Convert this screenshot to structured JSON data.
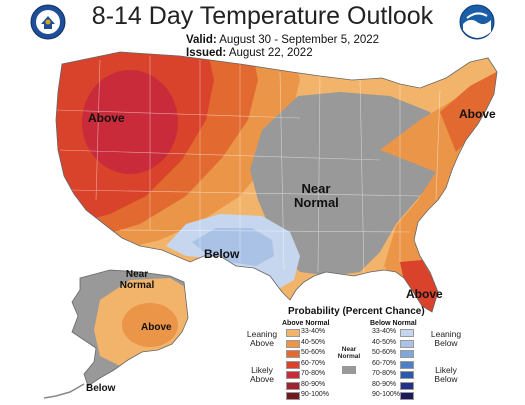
{
  "header": {
    "title": "8-14 Day Temperature Outlook",
    "valid_label": "Valid:",
    "valid_value": "August 30 - September 5, 2022",
    "issued_label": "Issued:",
    "issued_value": "August 22, 2022"
  },
  "logos": {
    "left": "doc-seal-icon",
    "right": "noaa-logo-icon"
  },
  "map_labels": {
    "west": "Above",
    "northeast": "Above",
    "central_line1": "Near",
    "central_line2": "Normal",
    "south": "Below",
    "florida": "Above",
    "alaska_near_line1": "Near",
    "alaska_near_line2": "Normal",
    "alaska_above": "Above",
    "alaska_below": "Below"
  },
  "legend": {
    "title": "Probability (Percent Chance)",
    "above_header": "Above Normal",
    "below_header": "Below Normal",
    "near_header_line1": "Near",
    "near_header_line2": "Normal",
    "leaning_above_line1": "Leaning",
    "leaning_above_line2": "Above",
    "likely_above_line1": "Likely",
    "likely_above_line2": "Above",
    "leaning_below_line1": "Leaning",
    "leaning_below_line2": "Below",
    "likely_below_line1": "Likely",
    "likely_below_line2": "Below",
    "ranges": [
      "33-40%",
      "40-50%",
      "50-60%",
      "60-70%",
      "70-80%",
      "80-90%",
      "90-100%"
    ],
    "above_colors": [
      "#f2b46a",
      "#eb9549",
      "#e26a31",
      "#d9422b",
      "#c92b3a",
      "#a0222e",
      "#6e1a1e"
    ],
    "below_colors": [
      "#c6d6ee",
      "#a9c2e6",
      "#7fa5d9",
      "#4e7fc4",
      "#2b5aa8",
      "#24318a",
      "#1c1a5c"
    ],
    "near_color": "#999999"
  },
  "colors": {
    "above_33_40": "#f2b46a",
    "above_40_50": "#eb9549",
    "above_50_60": "#e26a31",
    "above_60_70": "#d9422b",
    "above_70_80": "#c92b3a",
    "below_33_40": "#c6d6ee",
    "below_40_50": "#a9c2e6",
    "near_normal": "#999999"
  }
}
